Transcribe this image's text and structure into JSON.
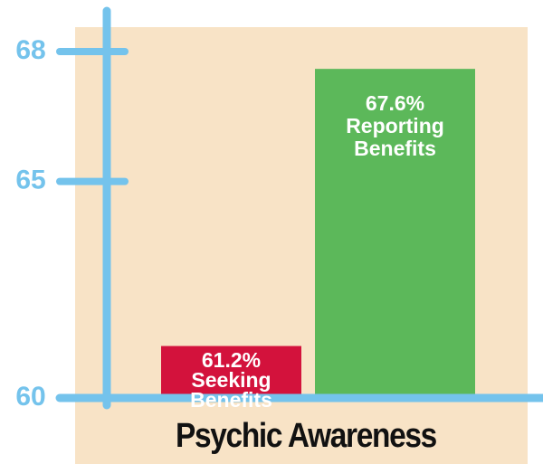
{
  "chart_data": {
    "type": "bar",
    "x_label": "Psychic Awareness",
    "categories": [
      "Seeking Benefits",
      "Reporting Benefits"
    ],
    "values": [
      61.2,
      67.6
    ],
    "value_labels": [
      "61.2%",
      "67.6%"
    ],
    "colors": [
      "#d3123c",
      "#5cb85a"
    ],
    "axis_color": "#74c3ec",
    "background": "#f8e3c6",
    "ylim": [
      60,
      68
    ],
    "yticks": [
      60,
      65,
      68
    ]
  }
}
